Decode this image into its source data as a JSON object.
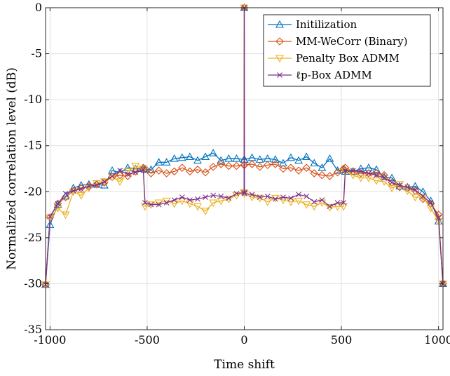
{
  "chart_data": {
    "type": "line",
    "title": "",
    "xlabel": "Time shift",
    "ylabel": "Normalized correlation level (dB)",
    "xlim": [
      -1023,
      1023
    ],
    "ylim": [
      -35,
      0
    ],
    "xticks": [
      -1000,
      -500,
      0,
      500,
      1000
    ],
    "xtick_labels": [
      "-1000",
      "-500",
      "0",
      "500",
      "1000"
    ],
    "yticks": [
      0,
      -5,
      -10,
      -15,
      -20,
      -25,
      -30,
      -35
    ],
    "ytick_labels": [
      "0",
      "-5",
      "-10",
      "-15",
      "-20",
      "-25",
      "-30",
      "-35"
    ],
    "grid": true,
    "legend_position": "top-right",
    "x": [
      -1023,
      -1000,
      -960,
      -920,
      -880,
      -840,
      -800,
      -760,
      -720,
      -680,
      -640,
      -600,
      -560,
      -520,
      -511,
      -480,
      -440,
      -400,
      -360,
      -320,
      -280,
      -240,
      -200,
      -160,
      -120,
      -80,
      -40,
      -1,
      0,
      1,
      40,
      80,
      120,
      160,
      200,
      240,
      280,
      320,
      360,
      400,
      440,
      480,
      511,
      520,
      560,
      600,
      640,
      680,
      720,
      760,
      800,
      840,
      880,
      920,
      960,
      1000,
      1023
    ],
    "series": [
      {
        "name": "Initilization",
        "color": "#0072BD",
        "marker": "triangle-up",
        "values": [
          -30.1,
          -23.6,
          -21.4,
          -20.5,
          -19.6,
          -19.3,
          -19.2,
          -19.2,
          -19.3,
          -17.7,
          -17.9,
          -17.4,
          -17.5,
          -17.5,
          -17.6,
          -17.6,
          -16.8,
          -16.8,
          -16.4,
          -16.3,
          -16.2,
          -16.6,
          -16.2,
          -15.8,
          -16.6,
          -16.4,
          -16.4,
          -16.5,
          0,
          -16.5,
          -16.3,
          -16.5,
          -16.4,
          -16.5,
          -16.9,
          -16.3,
          -16.6,
          -16.2,
          -16.9,
          -17.4,
          -16.4,
          -17.7,
          -17.6,
          -17.8,
          -17.8,
          -17.5,
          -17.4,
          -17.6,
          -18.4,
          -18.5,
          -19.4,
          -19.5,
          -19.4,
          -20.0,
          -21.0,
          -23.2,
          -30.0
        ]
      },
      {
        "name": "MM-WeCorr (Binary)",
        "color": "#D95319",
        "marker": "diamond",
        "values": [
          -30.1,
          -22.8,
          -21.3,
          -20.6,
          -19.9,
          -19.6,
          -19.4,
          -19.2,
          -19.0,
          -18.4,
          -18.2,
          -18.3,
          -17.8,
          -17.4,
          -17.5,
          -18.0,
          -17.7,
          -18.0,
          -17.8,
          -17.4,
          -17.8,
          -17.6,
          -17.9,
          -17.3,
          -17.0,
          -17.2,
          -17.2,
          -17.1,
          0,
          -17.1,
          -17.0,
          -17.3,
          -17.1,
          -17.0,
          -17.5,
          -17.4,
          -17.7,
          -17.4,
          -18.0,
          -18.2,
          -18.3,
          -17.9,
          -17.5,
          -17.4,
          -17.8,
          -18.0,
          -18.0,
          -18.0,
          -18.2,
          -19.0,
          -19.5,
          -19.6,
          -19.9,
          -20.8,
          -21.3,
          -22.5,
          -30.0
        ]
      },
      {
        "name": "Penalty Box ADMM",
        "color": "#EDB120",
        "marker": "triangle-down",
        "values": [
          -30.1,
          -22.9,
          -21.8,
          -22.5,
          -20.0,
          -20.4,
          -19.6,
          -19.1,
          -18.9,
          -18.4,
          -18.9,
          -17.8,
          -17.2,
          -17.5,
          -21.6,
          -21.4,
          -21.2,
          -21.0,
          -21.3,
          -21.0,
          -21.3,
          -21.6,
          -22.1,
          -21.2,
          -21.0,
          -20.8,
          -20.4,
          -20.1,
          0,
          -20.2,
          -20.6,
          -20.7,
          -21.1,
          -20.7,
          -20.9,
          -21.1,
          -21.0,
          -21.4,
          -21.6,
          -21.2,
          -21.7,
          -21.6,
          -21.6,
          -17.8,
          -18.2,
          -18.5,
          -18.5,
          -18.8,
          -18.9,
          -19.6,
          -19.2,
          -19.9,
          -20.6,
          -20.6,
          -21.8,
          -23.2,
          -30.0
        ]
      },
      {
        "name": "ℓp-Box ADMM",
        "color": "#7E2F8E",
        "marker": "x",
        "values": [
          -30.1,
          -22.7,
          -21.3,
          -20.2,
          -19.9,
          -19.7,
          -19.4,
          -19.3,
          -18.9,
          -18.3,
          -17.7,
          -18.1,
          -17.9,
          -17.6,
          -21.2,
          -21.4,
          -21.4,
          -21.2,
          -20.9,
          -20.6,
          -20.9,
          -20.8,
          -20.6,
          -20.4,
          -20.5,
          -20.7,
          -20.2,
          -20.1,
          0,
          -20.2,
          -20.3,
          -20.6,
          -20.5,
          -20.8,
          -20.6,
          -20.7,
          -20.3,
          -20.5,
          -21.1,
          -20.9,
          -21.6,
          -21.2,
          -21.2,
          -17.7,
          -17.7,
          -17.8,
          -18.0,
          -18.2,
          -18.5,
          -19.0,
          -19.3,
          -19.5,
          -19.8,
          -20.5,
          -21.2,
          -22.8,
          -30.0
        ]
      }
    ]
  }
}
